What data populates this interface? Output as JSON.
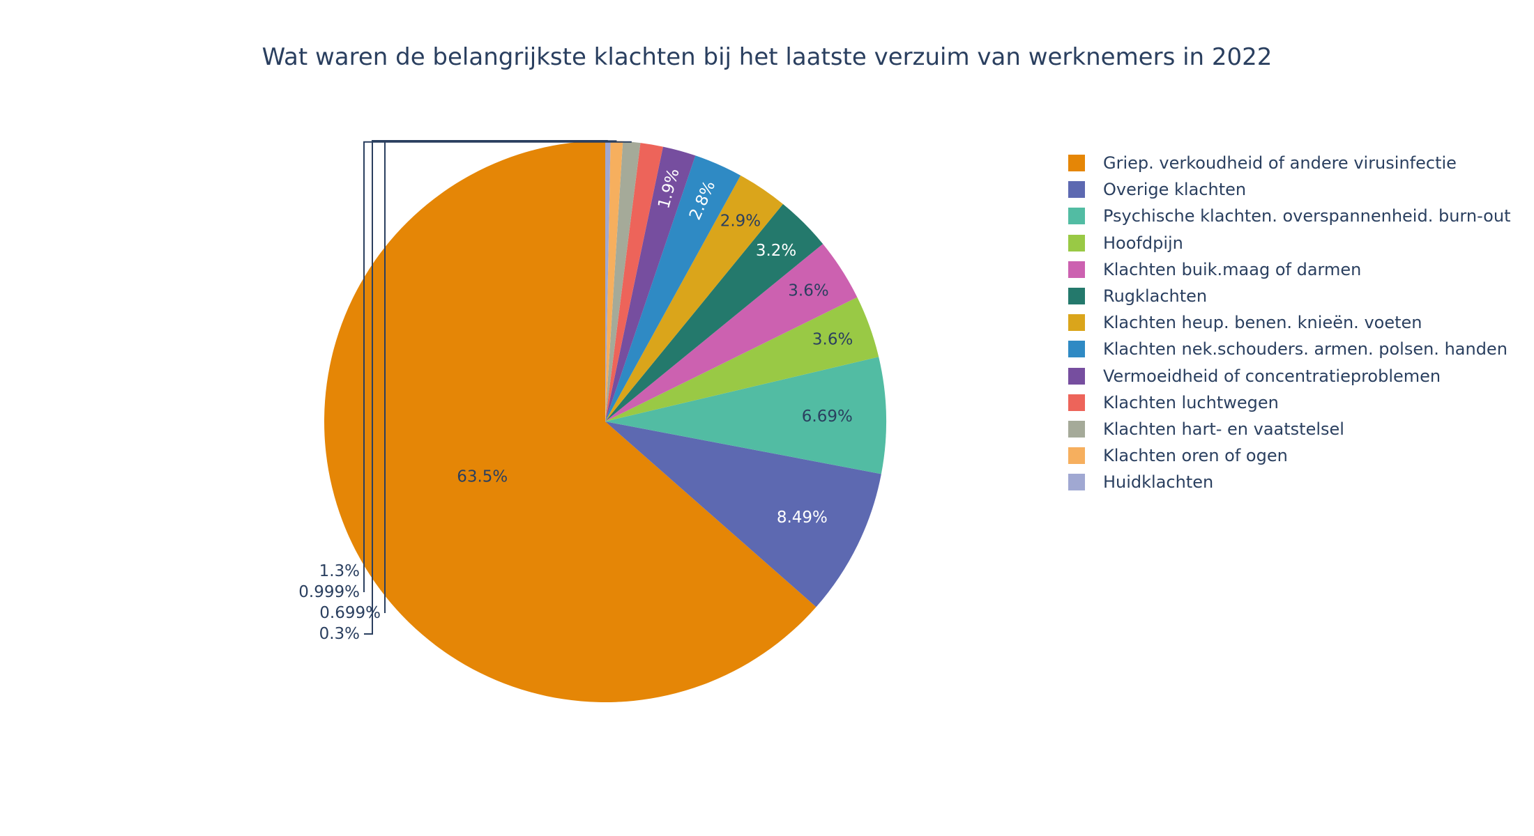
{
  "chart_data": {
    "type": "pie",
    "title": "Wat waren de belangrijkste klachten bij het laatste verzuim van werknemers in 2022",
    "slices": [
      {
        "label": "Griep. verkoudheid of andere virusinfectie",
        "value": 63.5,
        "text": "63.5%",
        "color": "#E58606",
        "text_color": "#2a3f5f",
        "text_pos": "inside"
      },
      {
        "label": "Overige klachten",
        "value": 8.49,
        "text": "8.49%",
        "color": "#5D69B1",
        "text_color": "#ffffff",
        "text_pos": "inside"
      },
      {
        "label": "Psychische klachten. overspannenheid. burn-out",
        "value": 6.69,
        "text": "6.69%",
        "color": "#52BCA3",
        "text_color": "#2a3f5f",
        "text_pos": "inside"
      },
      {
        "label": "Hoofdpijn",
        "value": 3.6,
        "text": "3.6%",
        "color": "#99C945",
        "text_color": "#2a3f5f",
        "text_pos": "inside"
      },
      {
        "label": "Klachten buik.maag of darmen",
        "value": 3.6,
        "text": "3.6%",
        "color": "#CC61B0",
        "text_color": "#2a3f5f",
        "text_pos": "inside"
      },
      {
        "label": "Rugklachten",
        "value": 3.2,
        "text": "3.2%",
        "color": "#24796C",
        "text_color": "#ffffff",
        "text_pos": "inside"
      },
      {
        "label": "Klachten heup. benen. knieën. voeten",
        "value": 2.9,
        "text": "2.9%",
        "color": "#DAA51B",
        "text_color": "#2a3f5f",
        "text_pos": "inside"
      },
      {
        "label": "Klachten nek.schouders. armen. polsen. handen",
        "value": 2.8,
        "text": "2.8%",
        "color": "#2F8AC4",
        "text_color": "#ffffff",
        "text_pos": "inside"
      },
      {
        "label": "Vermoeidheid of concentratieproblemen",
        "value": 1.9,
        "text": "1.9%",
        "color": "#764E9F",
        "text_color": "#ffffff",
        "text_pos": "inside"
      },
      {
        "label": "Klachten luchtwegen",
        "value": 1.3,
        "text": "1.3%",
        "color": "#ED645A",
        "text_color": "#2a3f5f",
        "text_pos": "outside"
      },
      {
        "label": "Klachten hart- en vaatstelsel",
        "value": 0.999,
        "text": "0.999%",
        "color": "#A5AA99",
        "text_color": "#2a3f5f",
        "text_pos": "outside"
      },
      {
        "label": "Klachten oren of ogen",
        "value": 0.699,
        "text": "0.699%",
        "color": "#F6AF5E",
        "text_color": "#2a3f5f",
        "text_pos": "outside"
      },
      {
        "label": "Huidklachten",
        "value": 0.3,
        "text": "0.3%",
        "color": "#A0A8D2",
        "text_color": "#2a3f5f",
        "text_pos": "outside"
      }
    ],
    "direction": "counterclockwise",
    "start": "top",
    "legend_position": "right"
  }
}
